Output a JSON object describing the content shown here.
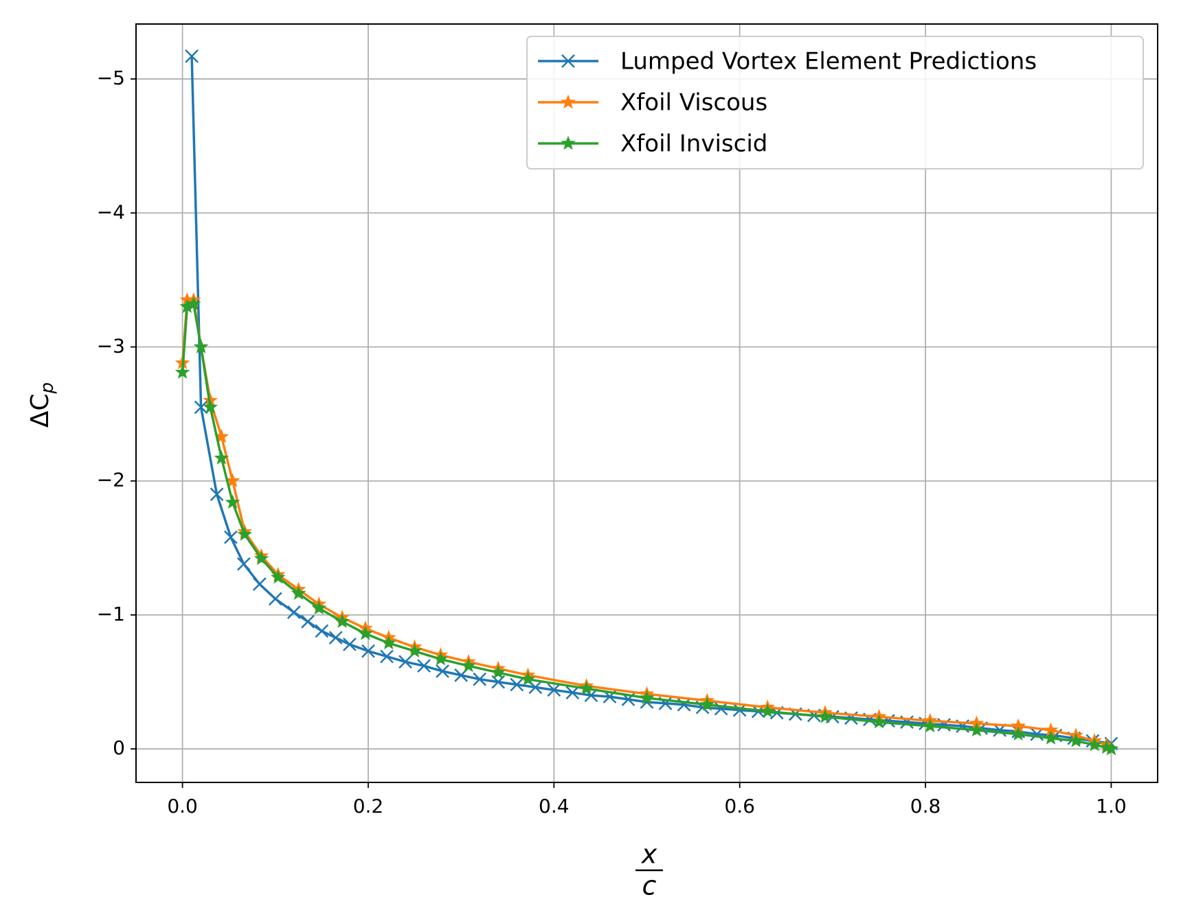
{
  "chart_data": {
    "type": "line",
    "xlabel_numerator": "x",
    "xlabel_denominator": "c",
    "ylabel": "ΔC",
    "ylabel_subscript": "p",
    "xlim": [
      -0.05,
      1.05
    ],
    "ylim": [
      0.25,
      -5.41
    ],
    "xticks": [
      {
        "value": 0,
        "label": "0.0"
      },
      0.2,
      0.4,
      0.6,
      0.8,
      {
        "value": 1,
        "label": "1.0"
      }
    ],
    "yticks": [
      {
        "value": 0,
        "label": "0"
      },
      {
        "value": -1,
        "label": "−1"
      },
      {
        "value": -2,
        "label": "−2"
      },
      {
        "value": -3,
        "label": "−3"
      },
      {
        "value": -4,
        "label": "−4"
      },
      {
        "value": -5,
        "label": "−5"
      }
    ],
    "grid": true,
    "legend": "upper right",
    "series": [
      {
        "name": "Lumped Vortex Element Predictions",
        "color": "#1f77b4",
        "marker": "x",
        "x": [
          0.01,
          0.02,
          0.037,
          0.052,
          0.066,
          0.083,
          0.1,
          0.12,
          0.135,
          0.15,
          0.165,
          0.18,
          0.2,
          0.22,
          0.24,
          0.26,
          0.28,
          0.3,
          0.32,
          0.34,
          0.36,
          0.38,
          0.4,
          0.42,
          0.44,
          0.46,
          0.48,
          0.5,
          0.52,
          0.54,
          0.56,
          0.58,
          0.6,
          0.62,
          0.64,
          0.66,
          0.68,
          0.7,
          0.72,
          0.74,
          0.76,
          0.78,
          0.8,
          0.82,
          0.84,
          0.86,
          0.88,
          0.9,
          0.92,
          0.94,
          0.96,
          0.98,
          1.0
        ],
        "values": [
          -5.17,
          -2.55,
          -1.9,
          -1.58,
          -1.38,
          -1.23,
          -1.12,
          -1.02,
          -0.95,
          -0.88,
          -0.83,
          -0.78,
          -0.73,
          -0.69,
          -0.65,
          -0.62,
          -0.58,
          -0.55,
          -0.52,
          -0.5,
          -0.48,
          -0.46,
          -0.44,
          -0.42,
          -0.4,
          -0.39,
          -0.37,
          -0.35,
          -0.34,
          -0.33,
          -0.31,
          -0.3,
          -0.29,
          -0.28,
          -0.27,
          -0.26,
          -0.25,
          -0.24,
          -0.23,
          -0.22,
          -0.21,
          -0.2,
          -0.19,
          -0.18,
          -0.17,
          -0.155,
          -0.14,
          -0.13,
          -0.11,
          -0.1,
          -0.08,
          -0.06,
          -0.04
        ]
      },
      {
        "name": "Xfoil Viscous",
        "color": "#ff7f0e",
        "marker": "star",
        "x": [
          0,
          0.005,
          0.012,
          0.02,
          0.03,
          0.042,
          0.054,
          0.067,
          0.085,
          0.103,
          0.125,
          0.147,
          0.172,
          0.197,
          0.222,
          0.25,
          0.278,
          0.308,
          0.34,
          0.372,
          0.435,
          0.5,
          0.565,
          0.63,
          0.692,
          0.75,
          0.805,
          0.855,
          0.9,
          0.935,
          0.962,
          0.982,
          0.995,
          1.0
        ],
        "values": [
          -2.88,
          -3.35,
          -3.35,
          -3.0,
          -2.6,
          -2.33,
          -2.0,
          -1.62,
          -1.44,
          -1.3,
          -1.19,
          -1.08,
          -0.98,
          -0.9,
          -0.83,
          -0.76,
          -0.7,
          -0.65,
          -0.6,
          -0.55,
          -0.47,
          -0.41,
          -0.36,
          -0.31,
          -0.27,
          -0.24,
          -0.21,
          -0.19,
          -0.17,
          -0.14,
          -0.1,
          -0.06,
          -0.03,
          0
        ]
      },
      {
        "name": "Xfoil Inviscid",
        "color": "#2ca02c",
        "marker": "star",
        "x": [
          0,
          0.005,
          0.012,
          0.02,
          0.03,
          0.042,
          0.054,
          0.067,
          0.085,
          0.103,
          0.125,
          0.147,
          0.172,
          0.197,
          0.222,
          0.25,
          0.278,
          0.308,
          0.34,
          0.372,
          0.435,
          0.5,
          0.565,
          0.63,
          0.692,
          0.75,
          0.805,
          0.855,
          0.9,
          0.935,
          0.962,
          0.982,
          0.995,
          1.0
        ],
        "values": [
          -2.81,
          -3.3,
          -3.32,
          -3.0,
          -2.55,
          -2.17,
          -1.84,
          -1.6,
          -1.42,
          -1.28,
          -1.16,
          -1.05,
          -0.95,
          -0.86,
          -0.79,
          -0.73,
          -0.67,
          -0.62,
          -0.57,
          -0.52,
          -0.45,
          -0.38,
          -0.33,
          -0.28,
          -0.24,
          -0.2,
          -0.17,
          -0.14,
          -0.11,
          -0.08,
          -0.06,
          -0.03,
          -0.01,
          0
        ]
      }
    ]
  }
}
